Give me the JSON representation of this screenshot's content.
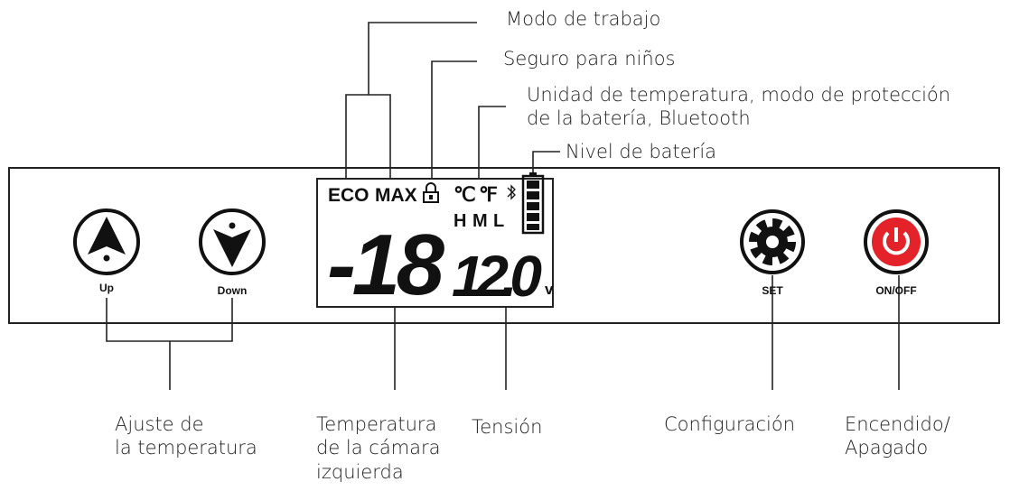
{
  "callouts": {
    "work_mode": "Modo de trabajo",
    "child_lock": "Seguro para niños",
    "unit": [
      "Unidad de temperatura, modo de protección",
      "de la batería, Bluetooth"
    ],
    "battery_level": "Nivel de batería",
    "temp_adjust": [
      "Ajuste de",
      "la temperatura"
    ],
    "left_temp": [
      "Temperatura",
      "de la cámara",
      "izquierda"
    ],
    "voltage": "Tensión",
    "settings": "Configuración",
    "power": [
      "Encendido/",
      "Apagado"
    ]
  },
  "display": {
    "modes": [
      "ECO",
      "MAX"
    ],
    "units": [
      "℃",
      "℉"
    ],
    "levels": [
      "H",
      "M",
      "L"
    ],
    "temperature": "-18",
    "voltage": "12.0",
    "voltage_unit": "v"
  },
  "buttons": [
    "Up",
    "Down",
    "SET",
    "ON/OFF"
  ]
}
